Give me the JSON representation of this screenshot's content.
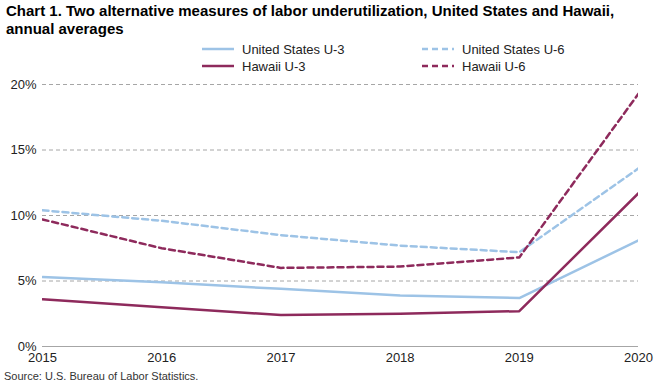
{
  "chart_data": {
    "type": "line",
    "title": "Chart 1. Two alternative measures of labor underutilization, United States and Hawaii, annual averages",
    "source": "Source: U.S. Bureau of Labor Statistics.",
    "x": [
      2015,
      2016,
      2017,
      2018,
      2019,
      2020
    ],
    "xlim": [
      2015,
      2020
    ],
    "xticks": [
      2015,
      2016,
      2017,
      2018,
      2019,
      2020
    ],
    "ylim": [
      0,
      20
    ],
    "yticks": [
      {
        "value": 0,
        "label": "0%"
      },
      {
        "value": 5,
        "label": "5%"
      },
      {
        "value": 10,
        "label": "10%"
      },
      {
        "value": 15,
        "label": "15%"
      },
      {
        "value": 20,
        "label": "20%"
      }
    ],
    "grid": true,
    "legend": "top",
    "series": [
      {
        "name": "United States U-3",
        "color": "#9dc3e6",
        "line_style": "solid",
        "values": [
          5.3,
          4.9,
          4.4,
          3.9,
          3.7,
          8.1
        ]
      },
      {
        "name": "United States U-6",
        "color": "#9dc3e6",
        "line_style": "dashed",
        "values": [
          10.4,
          9.6,
          8.5,
          7.7,
          7.2,
          13.6
        ]
      },
      {
        "name": "Hawaii U-3",
        "color": "#8e2a5c",
        "line_style": "solid",
        "values": [
          3.6,
          3.0,
          2.4,
          2.5,
          2.7,
          11.7
        ]
      },
      {
        "name": "Hawaii U-6",
        "color": "#8e2a5c",
        "line_style": "dashed",
        "values": [
          9.7,
          7.5,
          6.0,
          6.1,
          6.8,
          19.3
        ]
      }
    ]
  }
}
